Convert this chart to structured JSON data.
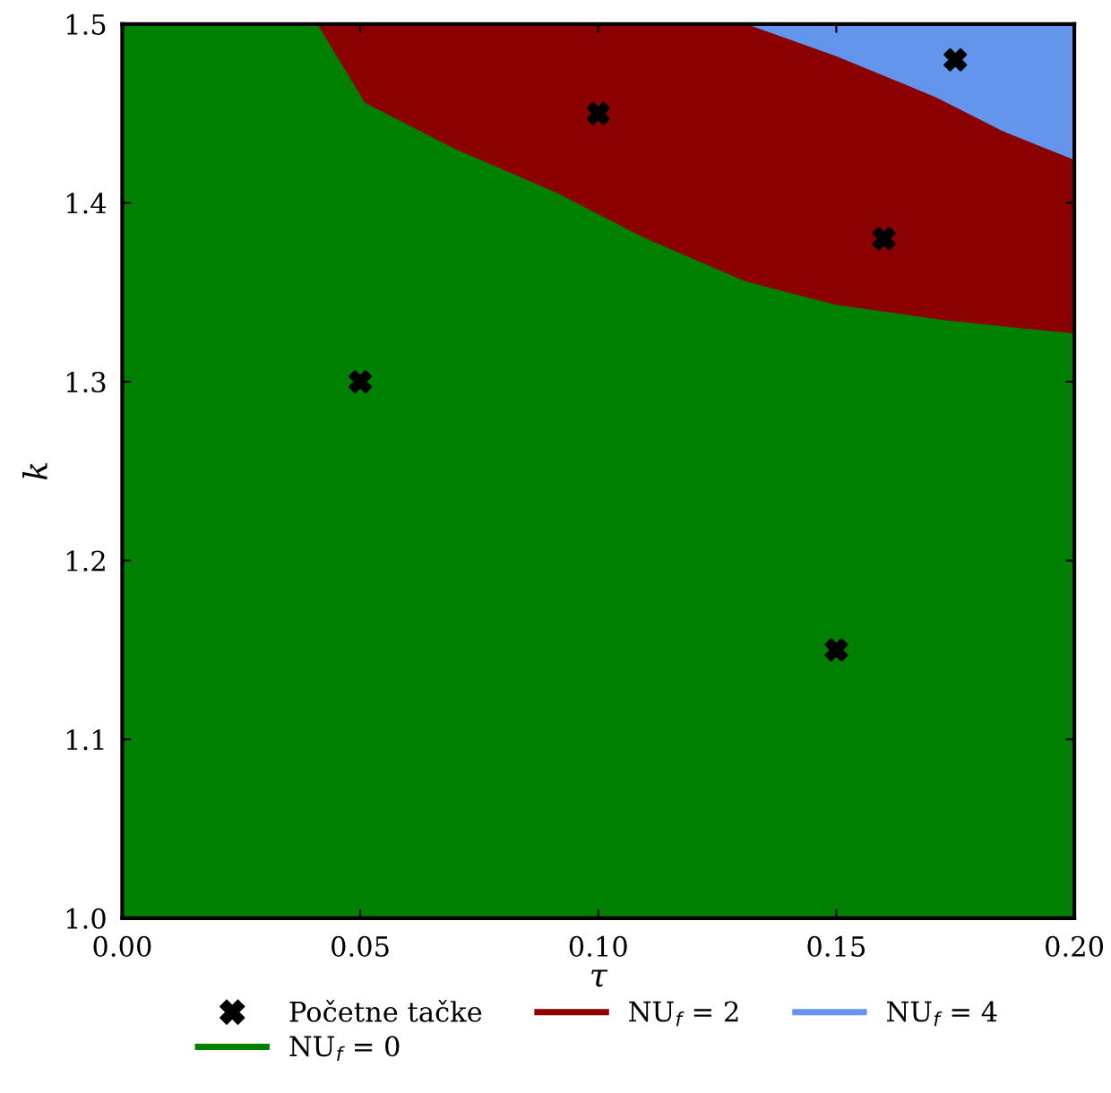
{
  "chart_data": {
    "type": "area",
    "xlabel": "τ",
    "ylabel": "k",
    "xlim": [
      0,
      0.2
    ],
    "ylim": [
      1.0,
      1.5
    ],
    "xticks": [
      {
        "value": 0,
        "label": "0.00"
      },
      {
        "value": 0.05,
        "label": "0.05"
      },
      {
        "value": 0.1,
        "label": "0.10"
      },
      {
        "value": 0.15,
        "label": "0.15"
      },
      {
        "value": 0.2,
        "label": "0.20"
      }
    ],
    "yticks": [
      {
        "value": 1.0,
        "label": "1.0"
      },
      {
        "value": 1.1,
        "label": "1.1"
      },
      {
        "value": 1.2,
        "label": "1.2"
      },
      {
        "value": 1.3,
        "label": "1.3"
      },
      {
        "value": 1.4,
        "label": "1.4"
      },
      {
        "value": 1.5,
        "label": "1.5"
      }
    ],
    "grid": false,
    "legend": "bottom",
    "series": [
      {
        "name": "Početne tačke",
        "type": "scatter",
        "marker": "cross",
        "color": "#000000",
        "x": [
          0.05,
          0.1,
          0.16,
          0.175,
          0.15
        ],
        "values": [
          1.3,
          1.45,
          1.38,
          1.48,
          1.15
        ]
      },
      {
        "name": "NU$_{f}$ = 0",
        "color": "#008000",
        "x": [
          0,
          0.041,
          0.051,
          0.07,
          0.091,
          0.11,
          0.131,
          0.15,
          0.171,
          0.185,
          0.2
        ],
        "values": [
          1.5,
          1.5,
          1.456,
          1.43,
          1.406,
          1.38,
          1.356,
          1.343,
          1.335,
          1.331,
          1.327
        ]
      },
      {
        "name": "NU$_{f}$ = 2",
        "color": "#8b0000",
        "x": [
          0.041,
          0.051,
          0.07,
          0.091,
          0.11,
          0.131,
          0.15,
          0.171,
          0.185,
          0.2
        ],
        "values": [
          1.5,
          1.5,
          1.5,
          1.5,
          1.5,
          1.5,
          1.482,
          1.459,
          1.44,
          1.424
        ]
      },
      {
        "name": "NU$_{f}$ = 4",
        "color": "#6495ed",
        "x": [
          0.131,
          0.15,
          0.171,
          0.185,
          0.2
        ],
        "values": [
          1.5,
          1.5,
          1.5,
          1.5,
          1.5
        ]
      }
    ]
  }
}
